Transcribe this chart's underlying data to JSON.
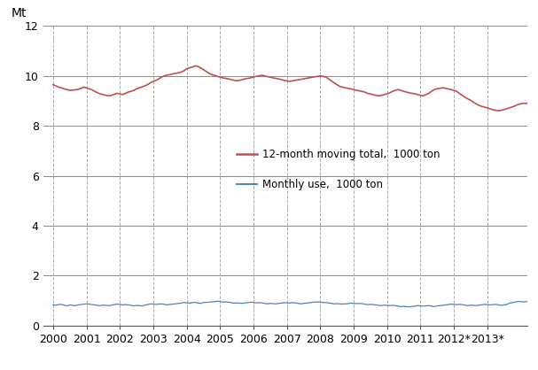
{
  "ylabel": "Mt",
  "ylim": [
    0,
    12
  ],
  "yticks": [
    0,
    2,
    4,
    6,
    8,
    10,
    12
  ],
  "xtick_labels": [
    "2000",
    "2001",
    "2002",
    "2003",
    "2004",
    "2005",
    "2006",
    "2007",
    "2008",
    "2009",
    "2010",
    "2011",
    "2012*",
    "2013*"
  ],
  "line1_color": "#c0504d",
  "line2_color": "#4f81bd",
  "legend1": "12-month moving total,  1000 ton",
  "legend2": "Monthly use,  1000 ton",
  "background_color": "#ffffff",
  "grid_color_h": "#888888",
  "grid_color_v": "#aaaaaa",
  "monthly_data": [
    0.83,
    0.82,
    0.84,
    0.85,
    0.82,
    0.79,
    0.83,
    0.81,
    0.8,
    0.83,
    0.84,
    0.86,
    0.87,
    0.86,
    0.84,
    0.83,
    0.81,
    0.8,
    0.82,
    0.81,
    0.8,
    0.82,
    0.84,
    0.86,
    0.85,
    0.83,
    0.84,
    0.83,
    0.81,
    0.79,
    0.81,
    0.8,
    0.79,
    0.82,
    0.84,
    0.87,
    0.86,
    0.85,
    0.86,
    0.87,
    0.85,
    0.83,
    0.85,
    0.86,
    0.87,
    0.89,
    0.9,
    0.93,
    0.91,
    0.9,
    0.92,
    0.93,
    0.91,
    0.89,
    0.92,
    0.93,
    0.94,
    0.95,
    0.96,
    0.98,
    0.96,
    0.94,
    0.95,
    0.94,
    0.92,
    0.9,
    0.91,
    0.9,
    0.89,
    0.91,
    0.92,
    0.94,
    0.93,
    0.91,
    0.92,
    0.91,
    0.89,
    0.87,
    0.89,
    0.88,
    0.87,
    0.89,
    0.9,
    0.92,
    0.91,
    0.9,
    0.92,
    0.91,
    0.89,
    0.87,
    0.89,
    0.9,
    0.91,
    0.93,
    0.94,
    0.95,
    0.94,
    0.93,
    0.92,
    0.91,
    0.89,
    0.87,
    0.88,
    0.87,
    0.86,
    0.87,
    0.88,
    0.9,
    0.89,
    0.88,
    0.89,
    0.88,
    0.86,
    0.84,
    0.85,
    0.84,
    0.83,
    0.81,
    0.8,
    0.82,
    0.81,
    0.8,
    0.81,
    0.8,
    0.78,
    0.76,
    0.77,
    0.76,
    0.75,
    0.77,
    0.78,
    0.8,
    0.79,
    0.78,
    0.79,
    0.8,
    0.78,
    0.76,
    0.79,
    0.8,
    0.81,
    0.83,
    0.84,
    0.86,
    0.85,
    0.84,
    0.85,
    0.84,
    0.82,
    0.8,
    0.82,
    0.81,
    0.8,
    0.82,
    0.83,
    0.85,
    0.84,
    0.83,
    0.84,
    0.85,
    0.83,
    0.81,
    0.83,
    0.84,
    0.9,
    0.92,
    0.94,
    0.97,
    0.96,
    0.95,
    0.96,
    0.95,
    0.93,
    0.91,
    0.93,
    0.92,
    0.91,
    0.93,
    0.94,
    0.96
  ],
  "moving_total": [
    9.65,
    9.6,
    9.55,
    9.52,
    9.48,
    9.45,
    9.42,
    9.43,
    9.44,
    9.46,
    9.5,
    9.55,
    9.52,
    9.48,
    9.44,
    9.38,
    9.32,
    9.28,
    9.25,
    9.22,
    9.2,
    9.22,
    9.26,
    9.3,
    9.28,
    9.25,
    9.3,
    9.35,
    9.38,
    9.42,
    9.48,
    9.52,
    9.56,
    9.6,
    9.65,
    9.72,
    9.78,
    9.82,
    9.88,
    9.95,
    10.0,
    10.03,
    10.05,
    10.08,
    10.1,
    10.12,
    10.15,
    10.2,
    10.28,
    10.32,
    10.35,
    10.4,
    10.38,
    10.32,
    10.25,
    10.18,
    10.1,
    10.05,
    10.02,
    9.98,
    9.95,
    9.92,
    9.9,
    9.88,
    9.85,
    9.82,
    9.8,
    9.82,
    9.85,
    9.88,
    9.9,
    9.92,
    9.95,
    9.98,
    10.0,
    10.02,
    10.0,
    9.97,
    9.95,
    9.92,
    9.9,
    9.88,
    9.85,
    9.82,
    9.8,
    9.78,
    9.8,
    9.82,
    9.84,
    9.86,
    9.88,
    9.9,
    9.92,
    9.94,
    9.96,
    9.98,
    10.0,
    9.98,
    9.95,
    9.88,
    9.8,
    9.72,
    9.65,
    9.58,
    9.55,
    9.52,
    9.5,
    9.48,
    9.45,
    9.42,
    9.4,
    9.38,
    9.35,
    9.3,
    9.28,
    9.25,
    9.22,
    9.2,
    9.22,
    9.25,
    9.28,
    9.32,
    9.38,
    9.42,
    9.45,
    9.42,
    9.38,
    9.35,
    9.32,
    9.3,
    9.28,
    9.25,
    9.22,
    9.2,
    9.25,
    9.3,
    9.38,
    9.45,
    9.48,
    9.5,
    9.52,
    9.5,
    9.48,
    9.45,
    9.42,
    9.38,
    9.3,
    9.22,
    9.15,
    9.08,
    9.02,
    8.95,
    8.88,
    8.82,
    8.78,
    8.75,
    8.72,
    8.68,
    8.65,
    8.62,
    8.6,
    8.62,
    8.65,
    8.68,
    8.72,
    8.75,
    8.8,
    8.85,
    8.88,
    8.9,
    8.9,
    8.88,
    8.86,
    8.85,
    8.85,
    8.85,
    8.86,
    8.87,
    8.88,
    8.89
  ]
}
